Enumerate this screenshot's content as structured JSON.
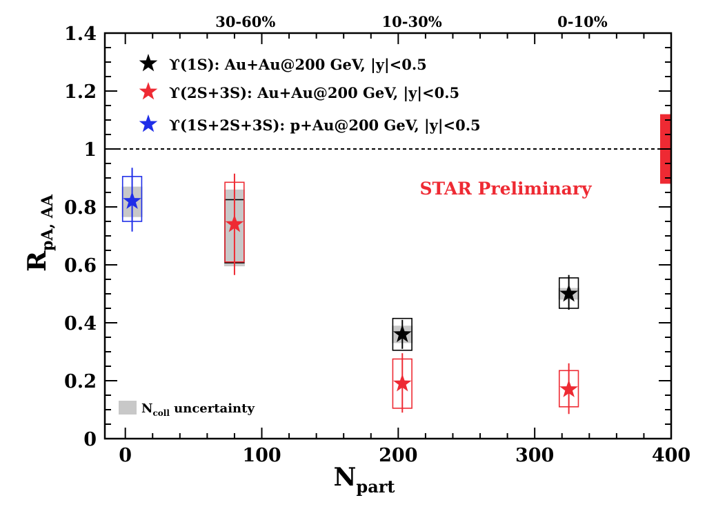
{
  "chart_data": {
    "type": "scatter",
    "xlabel_main": "N",
    "xlabel_sub": "part",
    "ylabel_main": "R",
    "ylabel_sub": "pA, AA",
    "xlim": [
      -15,
      400
    ],
    "ylim": [
      0,
      1.4
    ],
    "x_ticks": [
      {
        "value": 0,
        "label": "0"
      },
      {
        "value": 100,
        "label": "100"
      },
      {
        "value": 200,
        "label": "200"
      },
      {
        "value": 300,
        "label": "300"
      },
      {
        "value": 400,
        "label": "400"
      }
    ],
    "y_ticks": [
      {
        "value": 0,
        "label": "0"
      },
      {
        "value": 0.2,
        "label": "0.2"
      },
      {
        "value": 0.4,
        "label": "0.4"
      },
      {
        "value": 0.6,
        "label": "0.6"
      },
      {
        "value": 0.8,
        "label": "0.8"
      },
      {
        "value": 1.0,
        "label": "1"
      },
      {
        "value": 1.2,
        "label": "1.2"
      },
      {
        "value": 1.4,
        "label": "1.4"
      }
    ],
    "centrality_labels": [
      {
        "x": 88,
        "label": "30-60%"
      },
      {
        "x": 210,
        "label": "10-30%"
      },
      {
        "x": 335,
        "label": "0-10%"
      }
    ],
    "reference_line": 1.0,
    "global_uncertainty": {
      "low": 0.88,
      "high": 1.12,
      "color": "#ee2a33"
    },
    "annotation": {
      "text": "STAR Preliminary",
      "color": "#ee2a33"
    },
    "ncoll_legend": {
      "main": "N",
      "sub": "coll",
      "rest": " uncertainty"
    },
    "series": [
      {
        "name": "ϒ(1S): Au+Au@200 GeV, |y|<0.5",
        "color": "#000000",
        "points": [
          {
            "x": 80,
            "y": 0.0,
            "stat_low": 0.0,
            "stat_high": 0.0,
            "sys_low": 0.607,
            "sys_high": 0.825,
            "sys_half_width": 7,
            "ncoll_low": 0.595,
            "ncoll_high": 0.86,
            "show_marker": false
          },
          {
            "x": 203,
            "y": 0.36,
            "stat_low": 0.31,
            "stat_high": 0.41,
            "sys_low": 0.305,
            "sys_high": 0.415,
            "sys_half_width": 7,
            "ncoll_low": 0.33,
            "ncoll_high": 0.39,
            "show_marker": true
          },
          {
            "x": 325,
            "y": 0.5,
            "stat_low": 0.445,
            "stat_high": 0.565,
            "sys_low": 0.45,
            "sys_high": 0.555,
            "sys_half_width": 7,
            "ncoll_low": 0.48,
            "ncoll_high": 0.52,
            "show_marker": true
          }
        ]
      },
      {
        "name": "ϒ(2S+3S): Au+Au@200 GeV, |y|<0.5",
        "color": "#ee2a33",
        "points": [
          {
            "x": 80,
            "y": 0.74,
            "stat_low": 0.565,
            "stat_high": 0.915,
            "sys_low": 0.61,
            "sys_high": 0.885,
            "sys_half_width": 7,
            "ncoll_low": 0.0,
            "ncoll_high": 0.0,
            "show_marker": true
          },
          {
            "x": 203,
            "y": 0.19,
            "stat_low": 0.09,
            "stat_high": 0.295,
            "sys_low": 0.105,
            "sys_high": 0.275,
            "sys_half_width": 7,
            "ncoll_low": 0.0,
            "ncoll_high": 0.0,
            "show_marker": true
          },
          {
            "x": 325,
            "y": 0.17,
            "stat_low": 0.085,
            "stat_high": 0.26,
            "sys_low": 0.11,
            "sys_high": 0.235,
            "sys_half_width": 7,
            "ncoll_low": 0.0,
            "ncoll_high": 0.0,
            "show_marker": true
          }
        ]
      },
      {
        "name": "ϒ(1S+2S+3S): p+Au@200 GeV, |y|<0.5",
        "color": "#1f2ee8",
        "points": [
          {
            "x": 5,
            "y": 0.82,
            "stat_low": 0.715,
            "stat_high": 0.935,
            "sys_low": 0.75,
            "sys_high": 0.905,
            "sys_half_width": 7,
            "ncoll_low": 0.765,
            "ncoll_high": 0.87,
            "show_marker": true
          }
        ]
      }
    ]
  }
}
